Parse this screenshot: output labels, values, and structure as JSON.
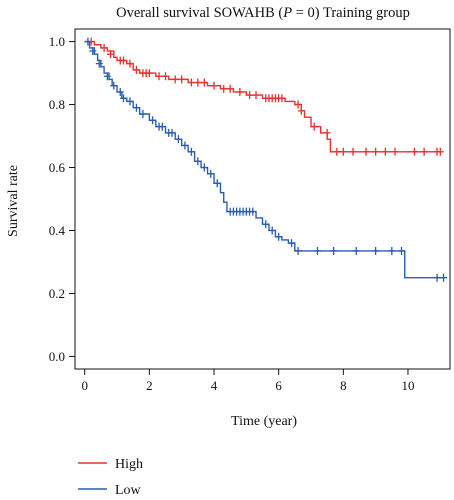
{
  "chart_data": {
    "type": "line",
    "title_prefix": "Overall survival SOWAHB (",
    "title_p": "P",
    "title_suffix": " = 0) Training group",
    "xlabel": "Time (year)",
    "ylabel": "Survival rate",
    "xlim": [
      -0.3,
      11.3
    ],
    "ylim": [
      -0.04,
      1.04
    ],
    "xticks": [
      0,
      2,
      4,
      6,
      8,
      10
    ],
    "yticks": [
      0.0,
      0.2,
      0.4,
      0.6,
      0.8,
      1.0
    ],
    "ytick_labels": [
      "0.0",
      "0.2",
      "0.4",
      "0.6",
      "0.8",
      "1.0"
    ],
    "legend": "bottom-left",
    "series": [
      {
        "name": "High",
        "color": "#e8302c",
        "steps": [
          [
            0,
            1.0
          ],
          [
            0.3,
            0.99
          ],
          [
            0.5,
            0.98
          ],
          [
            0.7,
            0.97
          ],
          [
            0.9,
            0.95
          ],
          [
            1.0,
            0.94
          ],
          [
            1.3,
            0.93
          ],
          [
            1.5,
            0.91
          ],
          [
            1.7,
            0.9
          ],
          [
            2.2,
            0.89
          ],
          [
            2.6,
            0.88
          ],
          [
            3.2,
            0.87
          ],
          [
            3.8,
            0.86
          ],
          [
            4.2,
            0.85
          ],
          [
            4.6,
            0.84
          ],
          [
            5.0,
            0.83
          ],
          [
            5.5,
            0.82
          ],
          [
            6.2,
            0.81
          ],
          [
            6.5,
            0.8
          ],
          [
            6.7,
            0.78
          ],
          [
            6.8,
            0.76
          ],
          [
            7.0,
            0.73
          ],
          [
            7.3,
            0.71
          ],
          [
            7.5,
            0.69
          ],
          [
            7.6,
            0.65
          ],
          [
            11.0,
            0.65
          ]
        ],
        "censors": [
          [
            0.2,
            1.0
          ],
          [
            0.6,
            0.98
          ],
          [
            0.8,
            0.96
          ],
          [
            1.1,
            0.94
          ],
          [
            1.2,
            0.94
          ],
          [
            1.4,
            0.93
          ],
          [
            1.6,
            0.91
          ],
          [
            1.8,
            0.9
          ],
          [
            1.9,
            0.9
          ],
          [
            2.0,
            0.9
          ],
          [
            2.3,
            0.89
          ],
          [
            2.5,
            0.89
          ],
          [
            2.8,
            0.88
          ],
          [
            3.0,
            0.88
          ],
          [
            3.3,
            0.87
          ],
          [
            3.5,
            0.87
          ],
          [
            3.7,
            0.87
          ],
          [
            4.0,
            0.86
          ],
          [
            4.3,
            0.85
          ],
          [
            4.5,
            0.85
          ],
          [
            4.8,
            0.84
          ],
          [
            5.1,
            0.83
          ],
          [
            5.3,
            0.83
          ],
          [
            5.6,
            0.82
          ],
          [
            5.7,
            0.82
          ],
          [
            5.8,
            0.82
          ],
          [
            5.9,
            0.82
          ],
          [
            6.0,
            0.82
          ],
          [
            6.1,
            0.82
          ],
          [
            6.6,
            0.8
          ],
          [
            6.7,
            0.78
          ],
          [
            7.1,
            0.73
          ],
          [
            7.5,
            0.71
          ],
          [
            7.8,
            0.65
          ],
          [
            8.0,
            0.65
          ],
          [
            8.3,
            0.65
          ],
          [
            8.7,
            0.65
          ],
          [
            9.0,
            0.65
          ],
          [
            9.3,
            0.65
          ],
          [
            9.6,
            0.65
          ],
          [
            10.2,
            0.65
          ],
          [
            10.5,
            0.65
          ],
          [
            10.9,
            0.65
          ],
          [
            11.0,
            0.65
          ]
        ]
      },
      {
        "name": "Low",
        "color": "#2a5db0",
        "steps": [
          [
            0,
            1.0
          ],
          [
            0.15,
            0.98
          ],
          [
            0.3,
            0.96
          ],
          [
            0.4,
            0.94
          ],
          [
            0.5,
            0.92
          ],
          [
            0.6,
            0.9
          ],
          [
            0.75,
            0.88
          ],
          [
            0.85,
            0.86
          ],
          [
            1.0,
            0.84
          ],
          [
            1.15,
            0.82
          ],
          [
            1.3,
            0.81
          ],
          [
            1.5,
            0.79
          ],
          [
            1.7,
            0.77
          ],
          [
            2.0,
            0.75
          ],
          [
            2.2,
            0.73
          ],
          [
            2.5,
            0.71
          ],
          [
            2.8,
            0.69
          ],
          [
            3.0,
            0.67
          ],
          [
            3.2,
            0.65
          ],
          [
            3.4,
            0.62
          ],
          [
            3.6,
            0.6
          ],
          [
            3.8,
            0.58
          ],
          [
            4.0,
            0.55
          ],
          [
            4.2,
            0.52
          ],
          [
            4.3,
            0.49
          ],
          [
            4.4,
            0.46
          ],
          [
            5.3,
            0.44
          ],
          [
            5.5,
            0.42
          ],
          [
            5.7,
            0.4
          ],
          [
            5.9,
            0.38
          ],
          [
            6.1,
            0.37
          ],
          [
            6.3,
            0.36
          ],
          [
            6.5,
            0.335
          ],
          [
            9.9,
            0.335
          ],
          [
            9.9,
            0.25
          ],
          [
            11.1,
            0.25
          ]
        ],
        "censors": [
          [
            0.1,
            1.0
          ],
          [
            0.25,
            0.97
          ],
          [
            0.45,
            0.93
          ],
          [
            0.7,
            0.89
          ],
          [
            0.9,
            0.86
          ],
          [
            1.1,
            0.84
          ],
          [
            1.2,
            0.82
          ],
          [
            1.4,
            0.81
          ],
          [
            1.6,
            0.79
          ],
          [
            1.8,
            0.77
          ],
          [
            2.1,
            0.75
          ],
          [
            2.3,
            0.73
          ],
          [
            2.4,
            0.73
          ],
          [
            2.6,
            0.71
          ],
          [
            2.7,
            0.71
          ],
          [
            2.9,
            0.69
          ],
          [
            3.1,
            0.67
          ],
          [
            3.3,
            0.65
          ],
          [
            3.5,
            0.62
          ],
          [
            3.7,
            0.6
          ],
          [
            3.9,
            0.58
          ],
          [
            4.1,
            0.55
          ],
          [
            4.5,
            0.46
          ],
          [
            4.6,
            0.46
          ],
          [
            4.7,
            0.46
          ],
          [
            4.8,
            0.46
          ],
          [
            4.9,
            0.46
          ],
          [
            5.0,
            0.46
          ],
          [
            5.1,
            0.46
          ],
          [
            5.2,
            0.46
          ],
          [
            5.6,
            0.42
          ],
          [
            5.8,
            0.4
          ],
          [
            6.0,
            0.38
          ],
          [
            6.4,
            0.36
          ],
          [
            6.6,
            0.335
          ],
          [
            7.2,
            0.335
          ],
          [
            7.7,
            0.335
          ],
          [
            8.4,
            0.335
          ],
          [
            9.0,
            0.335
          ],
          [
            9.5,
            0.335
          ],
          [
            9.8,
            0.335
          ],
          [
            10.9,
            0.25
          ],
          [
            11.1,
            0.25
          ]
        ]
      }
    ]
  }
}
